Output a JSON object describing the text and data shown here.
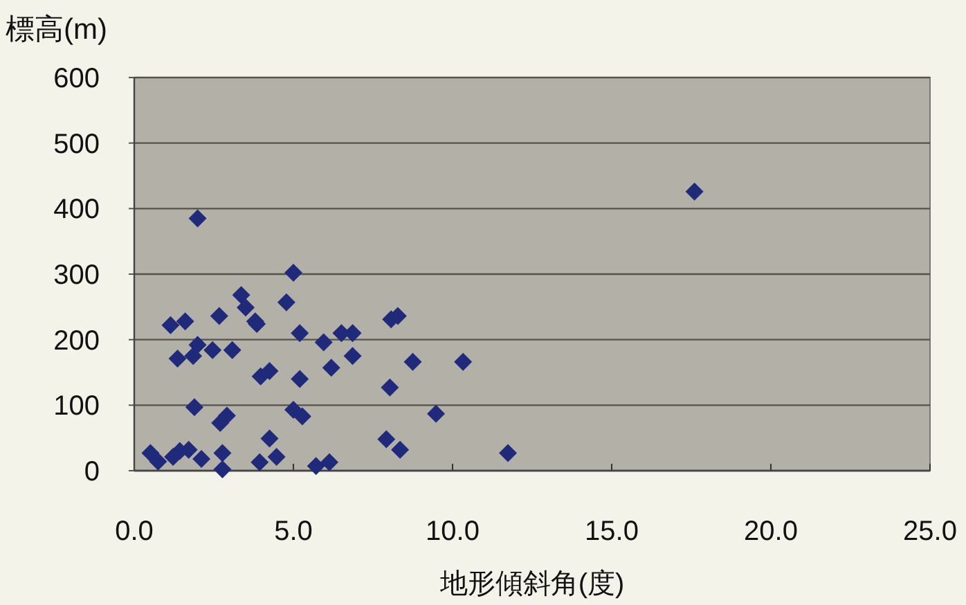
{
  "chart_data": {
    "type": "scatter",
    "xlabel": "地形傾斜角(度)",
    "ylabel": "標高(m)",
    "marker": "diamond",
    "grid": "y",
    "xlim": [
      0,
      25
    ],
    "ylim": [
      0,
      600
    ],
    "xticks": [
      {
        "value": 0,
        "label": "0.0"
      },
      {
        "value": 5,
        "label": "5.0"
      },
      {
        "value": 10,
        "label": "10.0"
      },
      {
        "value": 15,
        "label": "15.0"
      },
      {
        "value": 20,
        "label": "20.0"
      },
      {
        "value": 25,
        "label": "25.0"
      }
    ],
    "yticks": [
      0,
      100,
      200,
      300,
      400,
      500,
      600
    ],
    "series": [
      {
        "color": "#1f2a7a",
        "x": [
          1.99,
          5.0,
          3.36,
          3.5,
          4.78,
          1.14,
          1.6,
          2.67,
          3.8,
          3.85,
          5.2,
          6.51,
          6.86,
          8.07,
          8.28,
          5.95,
          1.99,
          1.85,
          1.36,
          2.46,
          3.08,
          6.86,
          8.75,
          10.33,
          6.19,
          3.97,
          4.25,
          5.2,
          8.03,
          1.89,
          5.0,
          5.28,
          2.91,
          2.7,
          9.48,
          4.25,
          7.92,
          8.35,
          11.74,
          0.51,
          0.75,
          1.22,
          1.43,
          1.71,
          2.11,
          2.77,
          2.77,
          3.94,
          4.47,
          5.71,
          6.13,
          17.6
        ],
        "values": [
          385,
          302,
          268,
          249,
          257,
          222,
          228,
          236,
          228,
          224,
          210,
          210,
          210,
          231,
          236,
          196,
          192,
          175,
          171,
          184,
          184,
          175,
          166,
          166,
          157,
          144,
          152,
          140,
          127,
          97,
          93,
          83,
          84,
          73,
          87,
          49,
          48,
          32,
          27,
          27,
          14,
          21,
          30,
          32,
          18,
          27,
          2,
          13,
          21,
          7,
          13,
          426
        ]
      }
    ]
  }
}
